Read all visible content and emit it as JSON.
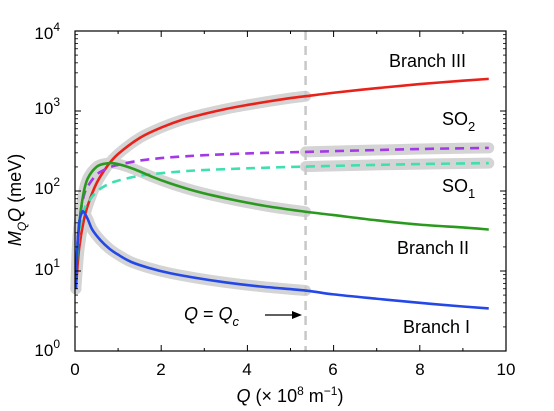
{
  "chart_data": {
    "type": "line",
    "title": "",
    "xlabel": {
      "var": "Q",
      "pre": " (× 10",
      "exp": "8",
      "post": " m",
      "exp2": "−1",
      "close": ")"
    },
    "ylabel": {
      "var": "M",
      "sub": "Q",
      "var2": "Q",
      "rest": " (meV)"
    },
    "x_scale": "linear",
    "y_scale": "log",
    "xlim": [
      0,
      10
    ],
    "ylim": [
      1,
      10000
    ],
    "x_ticks": [
      0,
      2,
      4,
      6,
      8,
      10
    ],
    "x_tick_labels": [
      "0",
      "2",
      "4",
      "6",
      "8",
      "10"
    ],
    "y_ticks": [
      1,
      10,
      100,
      1000,
      10000
    ],
    "y_tick_labels": [
      {
        "base": "10",
        "exp": "0"
      },
      {
        "base": "10",
        "exp": "1"
      },
      {
        "base": "10",
        "exp": "2"
      },
      {
        "base": "10",
        "exp": "3"
      },
      {
        "base": "10",
        "exp": "4"
      }
    ],
    "grid": false,
    "vline": {
      "x": 5.35
    },
    "annotation": {
      "lhs": "Q",
      "eq": " = ",
      "rhs": "Q",
      "sub": "c"
    },
    "series": [
      {
        "name": "Branch III",
        "color": "#e8221b",
        "style": "solid",
        "x": [
          0.02,
          0.05,
          0.1,
          0.2,
          0.3,
          0.5,
          0.75,
          1,
          1.5,
          2,
          2.5,
          3,
          3.5,
          4,
          4.5,
          5,
          5.35,
          6,
          7,
          8,
          9,
          9.6
        ],
        "y": [
          6,
          10,
          20,
          42,
          67,
          125,
          205,
          290,
          460,
          620,
          780,
          920,
          1060,
          1190,
          1320,
          1450,
          1530,
          1690,
          1930,
          2170,
          2390,
          2520
        ]
      },
      {
        "name": "SO_2",
        "color": "#a339e6",
        "style": "dashed",
        "x": [
          0.02,
          0.05,
          0.1,
          0.2,
          0.3,
          0.5,
          0.75,
          1,
          1.5,
          2,
          2.5,
          3,
          4,
          5,
          5.35,
          6,
          7,
          8,
          9,
          9.6
        ],
        "y": [
          6,
          18,
          42,
          85,
          115,
          160,
          192,
          212,
          240,
          258,
          270,
          280,
          295,
          305,
          308,
          315,
          325,
          335,
          342,
          346
        ]
      },
      {
        "name": "SO_1",
        "color": "#3fe0b0",
        "style": "dashed",
        "x": [
          0.02,
          0.05,
          0.1,
          0.2,
          0.3,
          0.5,
          0.75,
          1,
          1.5,
          2,
          2.5,
          3,
          4,
          5,
          5.35,
          6,
          7,
          8,
          9,
          9.6
        ],
        "y": [
          6,
          14,
          30,
          56,
          72,
          98,
          120,
          135,
          155,
          167,
          176,
          183,
          192,
          200,
          202,
          206,
          212,
          217,
          221,
          223
        ]
      },
      {
        "name": "Branch II",
        "color": "#2a9a1f",
        "style": "solid",
        "x": [
          0.02,
          0.05,
          0.1,
          0.2,
          0.3,
          0.5,
          0.7,
          0.9,
          1.1,
          1.4,
          1.8,
          2.2,
          2.7,
          3.2,
          3.8,
          4.5,
          5.35,
          6,
          7,
          8,
          9,
          9.6
        ],
        "y": [
          6,
          15,
          40,
          95,
          145,
          200,
          220,
          222,
          210,
          185,
          150,
          125,
          103,
          88,
          75,
          64,
          55,
          50,
          43,
          38,
          35,
          33
        ]
      },
      {
        "name": "Branch I",
        "color": "#2448e8",
        "style": "solid",
        "x": [
          0.02,
          0.05,
          0.1,
          0.15,
          0.2,
          0.3,
          0.4,
          0.6,
          0.8,
          1,
          1.3,
          1.7,
          2.2,
          2.8,
          3.5,
          4.3,
          5.35,
          6,
          7,
          8,
          9,
          9.6
        ],
        "y": [
          6,
          18,
          40,
          52,
          55,
          44,
          33,
          24,
          19,
          16,
          13,
          11,
          9.4,
          8.2,
          7.2,
          6.4,
          5.7,
          5.1,
          4.5,
          4.0,
          3.6,
          3.4
        ]
      }
    ],
    "labels": [
      {
        "text": "Branch III"
      },
      {
        "text": "SO",
        "sub": "2"
      },
      {
        "text": "SO",
        "sub": "1"
      },
      {
        "text": "Branch II"
      },
      {
        "text": "Branch I"
      }
    ],
    "highlight_color": "#d4d4d4",
    "vline_color": "#c8c8c8"
  }
}
